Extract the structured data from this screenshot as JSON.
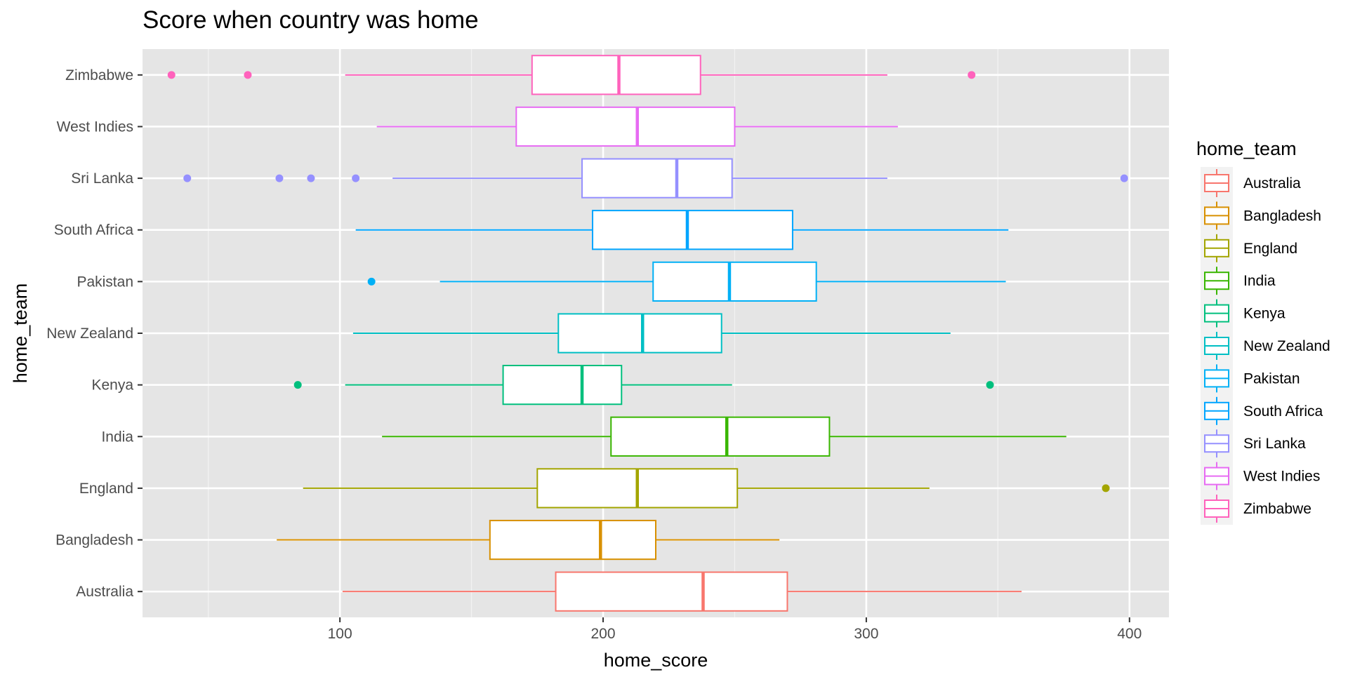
{
  "chart_data": {
    "type": "boxplot",
    "orientation": "horizontal",
    "title": "Score when country was home",
    "xlabel": "home_score",
    "ylabel": "home_team",
    "xlim": [
      25,
      415
    ],
    "xticks": [
      100,
      200,
      300,
      400
    ],
    "x_minor_gridlines": [
      50,
      150,
      250,
      350
    ],
    "background": "#e5e5e5",
    "grid": true,
    "legend": {
      "title": "home_team",
      "position": "right"
    },
    "categories": [
      "Australia",
      "Bangladesh",
      "England",
      "India",
      "Kenya",
      "New Zealand",
      "Pakistan",
      "South Africa",
      "Sri Lanka",
      "West Indies",
      "Zimbabwe"
    ],
    "series": [
      {
        "name": "Australia",
        "color": "#F8766D",
        "whisker_low": 101,
        "q1": 182,
        "median": 238,
        "q3": 270,
        "whisker_high": 359,
        "outliers": []
      },
      {
        "name": "Bangladesh",
        "color": "#D89000",
        "whisker_low": 76,
        "q1": 157,
        "median": 199,
        "q3": 220,
        "whisker_high": 267,
        "outliers": []
      },
      {
        "name": "England",
        "color": "#A3A500",
        "whisker_low": 86,
        "q1": 175,
        "median": 213,
        "q3": 251,
        "whisker_high": 324,
        "outliers": [
          391
        ]
      },
      {
        "name": "India",
        "color": "#39B600",
        "whisker_low": 116,
        "q1": 203,
        "median": 247,
        "q3": 286,
        "whisker_high": 376,
        "outliers": []
      },
      {
        "name": "Kenya",
        "color": "#00BF7D",
        "whisker_low": 102,
        "q1": 162,
        "median": 192,
        "q3": 207,
        "whisker_high": 249,
        "outliers": [
          84,
          347
        ]
      },
      {
        "name": "New Zealand",
        "color": "#00BFC4",
        "whisker_low": 105,
        "q1": 183,
        "median": 215,
        "q3": 245,
        "whisker_high": 332,
        "outliers": []
      },
      {
        "name": "Pakistan",
        "color": "#00B0F6",
        "whisker_low": 138,
        "q1": 219,
        "median": 248,
        "q3": 281,
        "whisker_high": 353,
        "outliers": [
          112
        ]
      },
      {
        "name": "South Africa",
        "color": "#00A5FF",
        "whisker_low": 106,
        "q1": 196,
        "median": 232,
        "q3": 272,
        "whisker_high": 354,
        "outliers": []
      },
      {
        "name": "Sri Lanka",
        "color": "#9590FF",
        "whisker_low": 120,
        "q1": 192,
        "median": 228,
        "q3": 249,
        "whisker_high": 308,
        "outliers": [
          42,
          77,
          89,
          106,
          398
        ]
      },
      {
        "name": "West Indies",
        "color": "#E76BF3",
        "whisker_low": 114,
        "q1": 167,
        "median": 213,
        "q3": 250,
        "whisker_high": 312,
        "outliers": []
      },
      {
        "name": "Zimbabwe",
        "color": "#FF62BC",
        "whisker_low": 102,
        "q1": 173,
        "median": 206,
        "q3": 237,
        "whisker_high": 308,
        "outliers": [
          36,
          65,
          340
        ]
      }
    ]
  }
}
